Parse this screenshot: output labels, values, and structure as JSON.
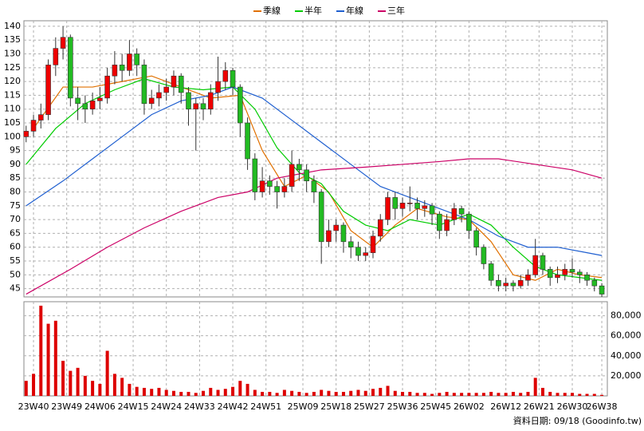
{
  "chart_data": {
    "type": "candlestick",
    "legend": "top",
    "grid": true,
    "up_color": "#ee0000",
    "down_color": "#22bb22",
    "x": [
      -2,
      0,
      2,
      4,
      6,
      8,
      10,
      12,
      14,
      16,
      18,
      20,
      22,
      24,
      26,
      28,
      30,
      32,
      34,
      36,
      38,
      40,
      42,
      44,
      46,
      48,
      50,
      52,
      54,
      56,
      58,
      60,
      62,
      64,
      66,
      68,
      70,
      72,
      74,
      76,
      78,
      80,
      82,
      84,
      86,
      88,
      90,
      92,
      94,
      96,
      98,
      100,
      102,
      104,
      106,
      108,
      110,
      112,
      114,
      116,
      118,
      120,
      122,
      124,
      126,
      128,
      130,
      132,
      134,
      136,
      138,
      140,
      142,
      144,
      146,
      148,
      150,
      152,
      154
    ],
    "open": [
      100,
      102,
      106,
      108,
      126,
      132,
      136,
      114,
      112,
      110,
      113,
      114,
      122,
      126,
      124,
      130,
      126,
      112,
      114,
      116,
      118,
      122,
      116,
      110,
      112,
      110,
      116,
      120,
      124,
      118,
      105,
      92,
      80,
      84,
      82,
      80,
      82,
      90,
      88,
      84,
      80,
      62,
      66,
      68,
      62,
      60,
      57,
      58,
      64,
      70,
      78,
      74,
      76,
      76,
      74,
      75,
      72,
      66,
      70,
      74,
      72,
      66,
      60,
      54,
      48,
      46,
      47,
      46,
      48,
      50,
      57,
      52,
      49,
      50,
      52,
      51,
      50,
      48,
      46
    ],
    "high": [
      104,
      108,
      112,
      128,
      136,
      140,
      137,
      118,
      115,
      116,
      118,
      125,
      131,
      130,
      135,
      132,
      128,
      117,
      119,
      121,
      124,
      123,
      118,
      114,
      114,
      119,
      129,
      127,
      125,
      119,
      107,
      94,
      89,
      86,
      84,
      85,
      95,
      92,
      90,
      86,
      81,
      70,
      70,
      69,
      64,
      62,
      60,
      66,
      72,
      80,
      80,
      78,
      82,
      78,
      77,
      76,
      73,
      72,
      76,
      75,
      73,
      67,
      61,
      55,
      50,
      49,
      48,
      50,
      52,
      63,
      58,
      53,
      53,
      54,
      56,
      52,
      51,
      49,
      47
    ],
    "low": [
      98,
      100,
      103,
      106,
      122,
      128,
      111,
      106,
      105,
      108,
      110,
      112,
      119,
      120,
      122,
      122,
      108,
      110,
      111,
      113,
      115,
      112,
      104,
      95,
      106,
      108,
      113,
      117,
      115,
      100,
      88,
      77,
      78,
      79,
      74,
      78,
      80,
      84,
      80,
      76,
      54,
      60,
      62,
      58,
      56,
      55,
      55,
      56,
      62,
      68,
      70,
      71,
      73,
      70,
      71,
      68,
      63,
      64,
      68,
      69,
      63,
      57,
      52,
      46,
      44,
      44,
      44,
      45,
      46,
      49,
      50,
      46,
      47,
      48,
      49,
      47,
      46,
      44,
      42
    ],
    "close": [
      102,
      106,
      108,
      126,
      132,
      136,
      114,
      112,
      110,
      113,
      114,
      122,
      126,
      124,
      130,
      126,
      112,
      114,
      116,
      118,
      122,
      116,
      110,
      112,
      110,
      116,
      120,
      124,
      118,
      105,
      92,
      80,
      84,
      82,
      80,
      82,
      90,
      88,
      84,
      80,
      62,
      66,
      68,
      62,
      60,
      57,
      58,
      64,
      70,
      78,
      74,
      76,
      76,
      74,
      75,
      72,
      66,
      70,
      74,
      72,
      66,
      60,
      54,
      48,
      46,
      47,
      46,
      48,
      50,
      57,
      52,
      49,
      50,
      52,
      51,
      50,
      48,
      46,
      43
    ],
    "volume": {
      "color": "#dd0000",
      "values": [
        15000,
        22000,
        90000,
        72000,
        75000,
        35000,
        25000,
        28000,
        20000,
        15000,
        12000,
        45000,
        22000,
        18000,
        12000,
        9000,
        8000,
        7000,
        8000,
        6000,
        5000,
        4000,
        4000,
        3000,
        5000,
        8000,
        6000,
        7000,
        9000,
        15000,
        12000,
        6000,
        4000,
        4000,
        3000,
        6000,
        5000,
        4000,
        3000,
        4000,
        6000,
        5000,
        4000,
        4000,
        5000,
        6000,
        5000,
        7000,
        8000,
        10000,
        5000,
        4000,
        4000,
        3000,
        3000,
        2000,
        3000,
        4000,
        3000,
        3000,
        3000,
        3000,
        3000,
        4000,
        3000,
        3000,
        4000,
        3000,
        4000,
        18000,
        8000,
        4000,
        3000,
        3000,
        3000,
        2000,
        2000,
        2000,
        1000
      ]
    },
    "series": [
      {
        "name": "季線",
        "color": "#e07000",
        "x": [
          0,
          8,
          16,
          24,
          32,
          40,
          48,
          56,
          62,
          68,
          74,
          80,
          86,
          92,
          98,
          104,
          112,
          118,
          124,
          130,
          136,
          142,
          148,
          154
        ],
        "values": [
          103,
          118,
          118,
          120,
          122,
          118,
          114,
          115,
          95,
          82,
          86,
          80,
          66,
          60,
          68,
          74,
          71,
          70,
          62,
          50,
          48,
          52,
          50,
          49
        ]
      },
      {
        "name": "半年",
        "color": "#00cc00",
        "x": [
          -2,
          6,
          14,
          22,
          30,
          38,
          46,
          54,
          60,
          66,
          72,
          78,
          84,
          90,
          96,
          102,
          110,
          118,
          124,
          130,
          136,
          142,
          148,
          154
        ],
        "values": [
          90,
          103,
          112,
          117,
          121,
          118,
          117,
          118,
          110,
          96,
          87,
          83,
          73,
          68,
          66,
          70,
          68,
          72,
          68,
          60,
          53,
          50,
          49,
          48
        ]
      },
      {
        "name": "年線",
        "color": "#1f5fd0",
        "x": [
          -2,
          8,
          16,
          24,
          32,
          40,
          48,
          54,
          62,
          70,
          78,
          86,
          94,
          102,
          110,
          118,
          126,
          134,
          142,
          150,
          154
        ],
        "values": [
          75,
          84,
          92,
          100,
          108,
          113,
          115,
          118,
          114,
          106,
          98,
          90,
          82,
          78,
          74,
          70,
          64,
          60,
          60,
          58,
          57
        ]
      },
      {
        "name": "三年",
        "color": "#cc0066",
        "x": [
          -2,
          10,
          20,
          30,
          40,
          50,
          58,
          66,
          78,
          90,
          100,
          110,
          118,
          126,
          136,
          146,
          154
        ],
        "values": [
          43,
          52,
          60,
          67,
          73,
          78,
          80,
          85,
          88,
          89,
          90,
          91,
          92,
          92,
          90,
          88,
          85
        ]
      }
    ],
    "xlim": [
      -2.6,
      155.5
    ],
    "xticks": [
      {
        "value": 0,
        "label": "23W40"
      },
      {
        "value": 9,
        "label": "23W49"
      },
      {
        "value": 18,
        "label": "24W06"
      },
      {
        "value": 27,
        "label": "24W15"
      },
      {
        "value": 36,
        "label": "24W24"
      },
      {
        "value": 45,
        "label": "24W33"
      },
      {
        "value": 54,
        "label": "24W42"
      },
      {
        "value": 63,
        "label": "24W51"
      },
      {
        "value": 73,
        "label": "25W09"
      },
      {
        "value": 82,
        "label": "25W18"
      },
      {
        "value": 91,
        "label": "25W27"
      },
      {
        "value": 100,
        "label": "25W36"
      },
      {
        "value": 109,
        "label": "25W45"
      },
      {
        "value": 118,
        "label": "26W02"
      },
      {
        "value": 128,
        "label": "26W12"
      },
      {
        "value": 137,
        "label": "26W21"
      },
      {
        "value": 146,
        "label": "26W30"
      },
      {
        "value": 154,
        "label": "26W38"
      }
    ],
    "ylim": [
      42,
      142
    ],
    "yticks": [
      45,
      50,
      55,
      60,
      65,
      70,
      75,
      80,
      85,
      90,
      95,
      100,
      105,
      110,
      115,
      120,
      125,
      130,
      135,
      140
    ],
    "y2lim": [
      0,
      94000
    ],
    "y2ticks": [
      {
        "value": 20000,
        "label": "20,000"
      },
      {
        "value": 40000,
        "label": "40,000"
      },
      {
        "value": 60000,
        "label": "60,000"
      },
      {
        "value": 80000,
        "label": "80,000"
      }
    ],
    "footer": "資料日期: 09/18 (Goodinfo.tw)"
  }
}
